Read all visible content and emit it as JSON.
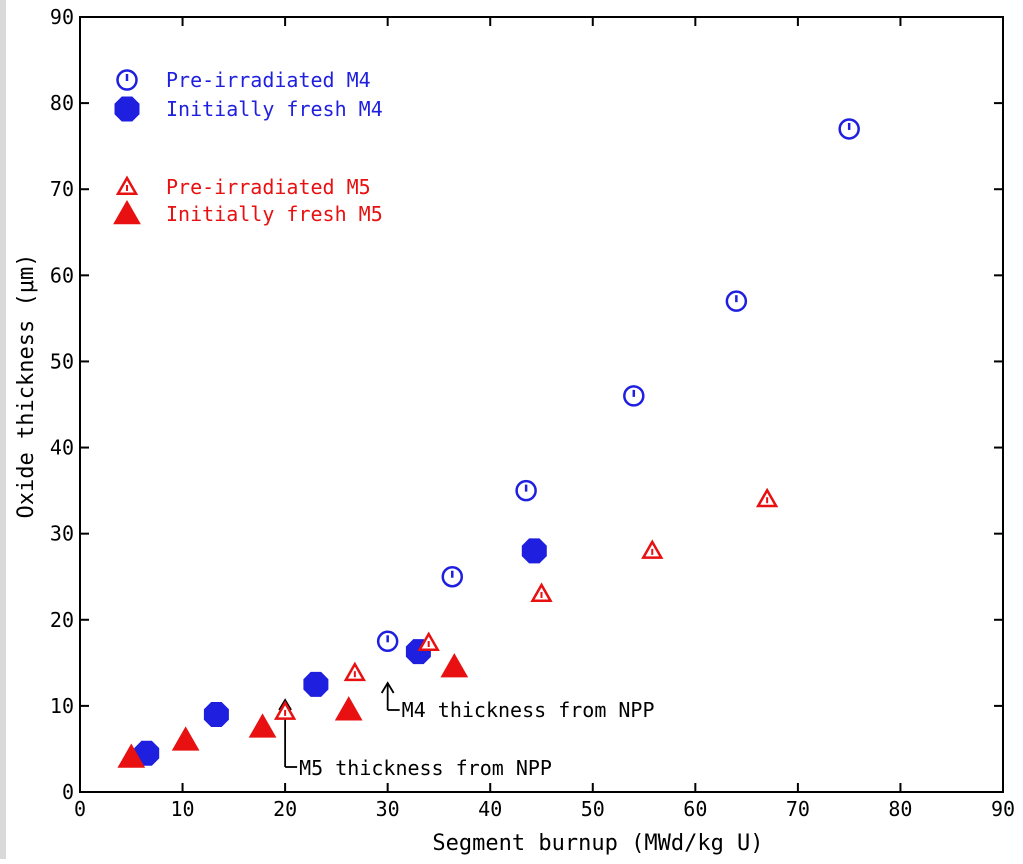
{
  "chart_data": {
    "type": "scatter",
    "xlabel": "Segment burnup (MWd/kg U)",
    "ylabel": "Oxide thickness (μm)",
    "xlim": [
      0,
      90
    ],
    "ylim": [
      0,
      90
    ],
    "x_ticks": [
      "0",
      "10",
      "20",
      "30",
      "40",
      "50",
      "60",
      "70",
      "80",
      "90"
    ],
    "y_ticks": [
      "0",
      "10",
      "20",
      "30",
      "40",
      "50",
      "60",
      "70",
      "80",
      "90"
    ],
    "grid": false,
    "legend_position": "top-left",
    "series": [
      {
        "name": "Pre-irradiated M4",
        "marker": "open-circle-tick",
        "color": "#1f1fe0",
        "points": [
          [
            30,
            17.5
          ],
          [
            36.3,
            25
          ],
          [
            43.5,
            35
          ],
          [
            54,
            46
          ],
          [
            64,
            57
          ],
          [
            75,
            77
          ]
        ]
      },
      {
        "name": "Initially fresh M4",
        "marker": "filled-octagon",
        "color": "#1f1fe0",
        "points": [
          [
            6.5,
            4.5
          ],
          [
            13.3,
            9
          ],
          [
            23,
            12.5
          ],
          [
            33,
            16.3
          ],
          [
            44.3,
            28
          ]
        ]
      },
      {
        "name": "Pre-irradiated M5",
        "marker": "open-triangle",
        "color": "#e81010",
        "points": [
          [
            20,
            9.3
          ],
          [
            26.8,
            13.8
          ],
          [
            34,
            17.3
          ],
          [
            45,
            23
          ],
          [
            55.8,
            28
          ],
          [
            67,
            34
          ]
        ]
      },
      {
        "name": "Initially fresh M5",
        "marker": "filled-triangle",
        "color": "#e81010",
        "points": [
          [
            5,
            4
          ],
          [
            10.3,
            6
          ],
          [
            17.8,
            7.5
          ],
          [
            26.2,
            9.5
          ],
          [
            36.5,
            14.5
          ]
        ]
      }
    ],
    "annotations": [
      {
        "text": "M4 thickness from NPP",
        "x": 30
      },
      {
        "text": "M5 thickness from NPP",
        "x": 20
      }
    ]
  }
}
